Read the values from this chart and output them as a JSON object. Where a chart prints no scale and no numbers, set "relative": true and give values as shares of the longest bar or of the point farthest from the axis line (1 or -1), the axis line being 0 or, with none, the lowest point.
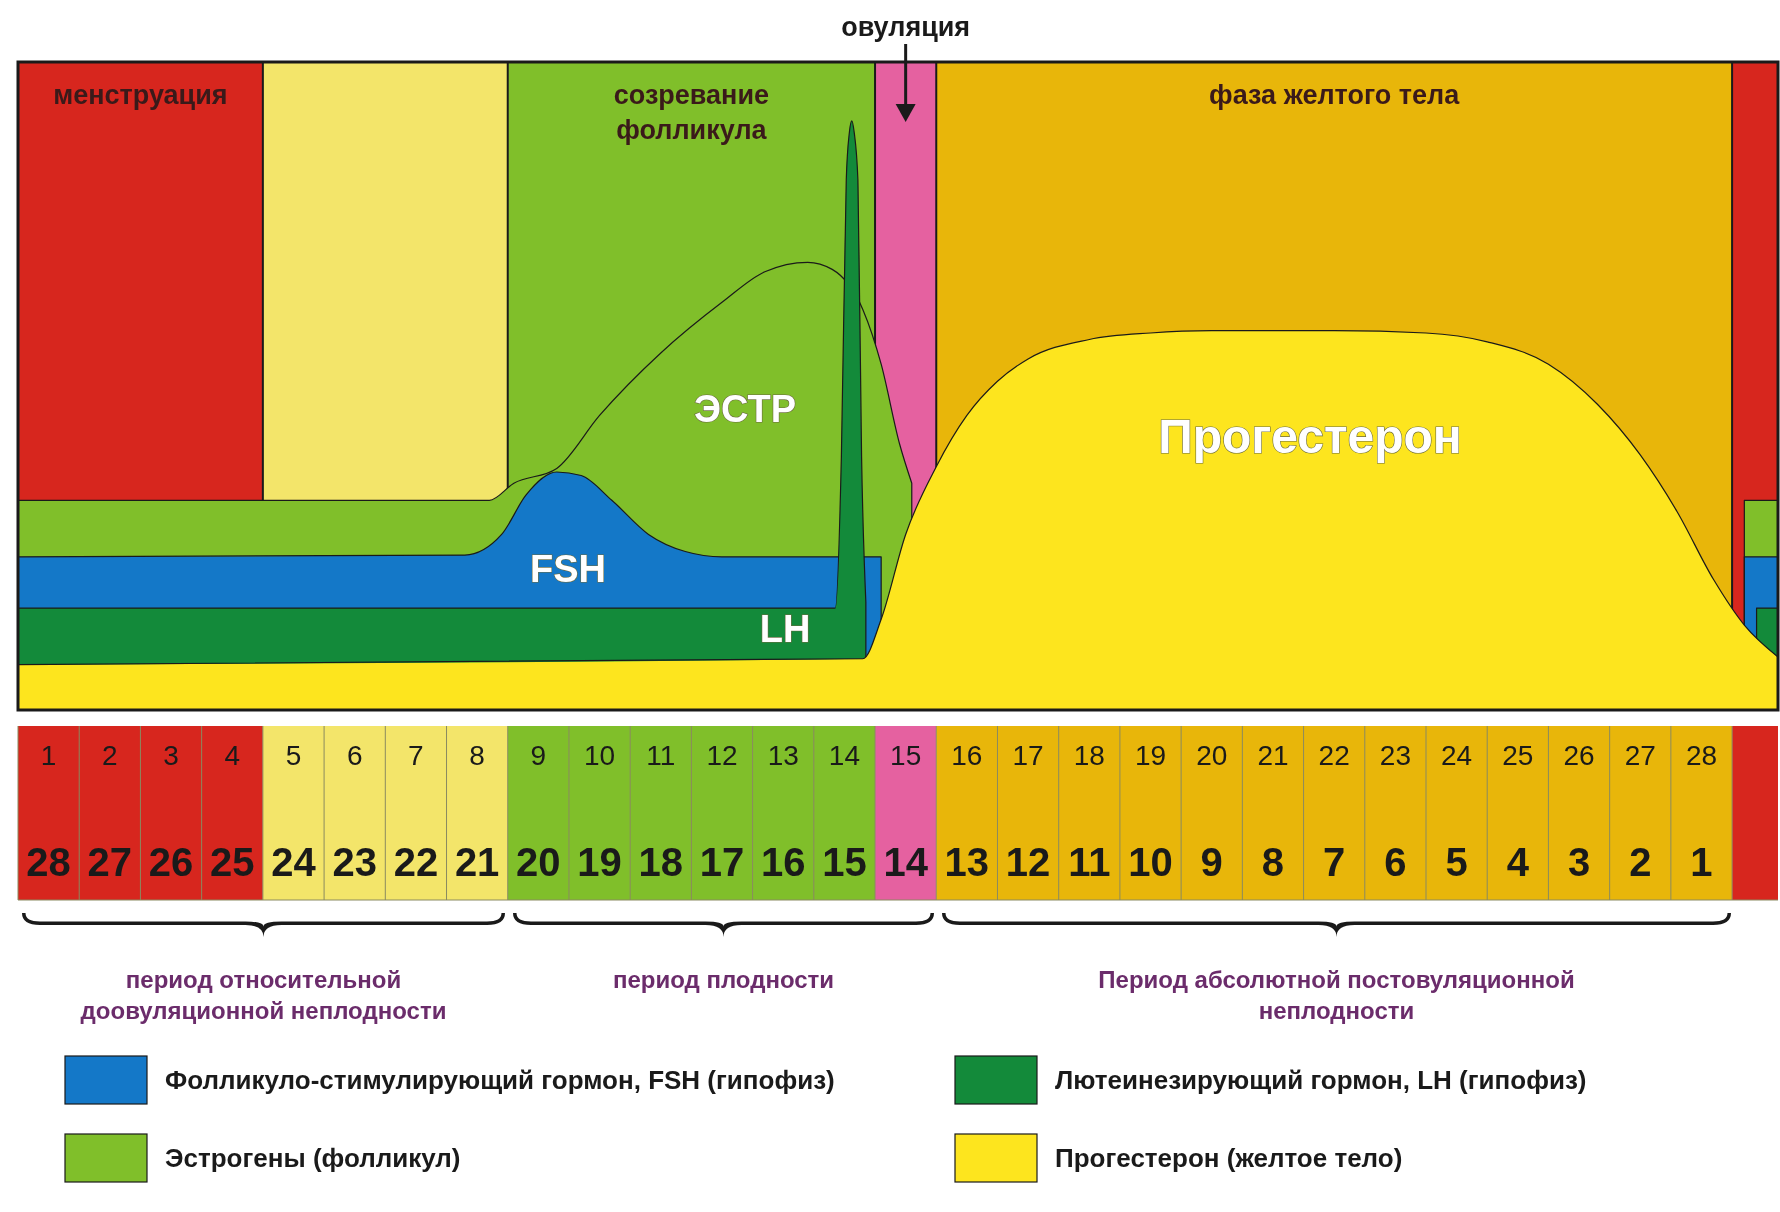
{
  "chart_data": {
    "type": "area",
    "relative": true,
    "legend": "bottom",
    "xlim": [
      0.5,
      29.25
    ],
    "xticks": [
      1,
      2,
      3,
      4,
      5,
      6,
      7,
      8,
      9,
      10,
      11,
      12,
      13,
      14,
      15,
      16,
      17,
      18,
      19,
      20,
      21,
      22,
      23,
      24,
      25,
      26,
      27,
      28
    ],
    "x2lim": [
      28.5,
      -0.25
    ],
    "x2ticks": [
      28,
      27,
      26,
      25,
      24,
      23,
      22,
      21,
      20,
      19,
      18,
      17,
      16,
      15,
      14,
      13,
      12,
      11,
      10,
      9,
      8,
      7,
      6,
      5,
      4,
      3,
      2,
      1
    ],
    "bands": [
      {
        "axis": "x",
        "from": 0.5,
        "to": 4.5,
        "label": "менструация",
        "color": "#d7261e"
      },
      {
        "axis": "x",
        "from": 4.5,
        "to": 8.5,
        "color": "#f3e56a"
      },
      {
        "axis": "x",
        "from": 8.5,
        "to": 14.5,
        "label": "созревание фолликула",
        "color": "#80bf2a"
      },
      {
        "axis": "x",
        "from": 14.5,
        "to": 15.5,
        "label": "овуляция",
        "color": "#e561a0"
      },
      {
        "axis": "x",
        "from": 15.5,
        "to": 28.5,
        "label": "фаза желтого тела",
        "color": "#e8b60a"
      },
      {
        "axis": "x",
        "from": 28.5,
        "to": 29.25,
        "color": "#d7261e"
      }
    ],
    "series": [
      {
        "name": "Эстрогены (фолликул)",
        "color": "#80bf2a",
        "x": [
          0.5,
          8.2,
          8.6,
          9.3,
          10,
          11,
          12,
          12.7,
          13.4,
          13.8,
          14.3,
          14.6,
          14.9,
          15.1,
          15.5,
          28.7,
          29.25
        ],
        "values": [
          0.356,
          0.356,
          0.385,
          0.41,
          0.5,
          0.606,
          0.692,
          0.744,
          0.76,
          0.748,
          0.68,
          0.587,
          0.452,
          0.385,
          null,
          0.356,
          0.356
        ]
      },
      {
        "name": "Фолликуло-стимулирующий гормон, FSH (гипофиз)",
        "color": "#1478c8",
        "x": [
          0.5,
          7.8,
          8.4,
          8.8,
          9.3,
          9.7,
          10.2,
          10.8,
          11.4,
          12,
          14.6,
          15,
          28.7,
          29.25
        ],
        "values": [
          0.26,
          0.263,
          0.298,
          0.365,
          0.404,
          0.398,
          0.356,
          0.298,
          0.269,
          0.26,
          0.26,
          null,
          0.26,
          0.26
        ]
      },
      {
        "name": "Лютеинезирующий гормон, LH (гипофиз)",
        "color": "#138a3a",
        "x": [
          0.5,
          13.85,
          13.95,
          14.03,
          14.08,
          14.12,
          14.16,
          14.22,
          14.28,
          14.35,
          14.6,
          28.9,
          29.25
        ],
        "values": [
          0.173,
          0.173,
          0.43,
          0.9,
          0.98,
          1,
          0.98,
          0.9,
          0.43,
          0.183,
          null,
          0.173,
          0.173
        ]
      },
      {
        "name": "Прогестерон (желтое тело)",
        "color": "#fde51e",
        "x": [
          0.5,
          14.3,
          14.6,
          15,
          15.5,
          16,
          16.5,
          17,
          18,
          19,
          20,
          22,
          23.5,
          24.5,
          25.5,
          26.3,
          27,
          27.6,
          28.2,
          28.7,
          29.25
        ],
        "values": [
          0.077,
          0.087,
          0.154,
          0.298,
          0.413,
          0.5,
          0.558,
          0.596,
          0.629,
          0.64,
          0.644,
          0.644,
          0.64,
          0.625,
          0.587,
          0.519,
          0.433,
          0.337,
          0.221,
          0.144,
          0.09
        ]
      }
    ],
    "annotations": [
      "ЭСТР",
      "FSH",
      "LH",
      "Прогестерон",
      "период относительной доовуляционной неплодности",
      "период плодности",
      "Период абсолютной постовуляционной неплодности"
    ]
  }
}
